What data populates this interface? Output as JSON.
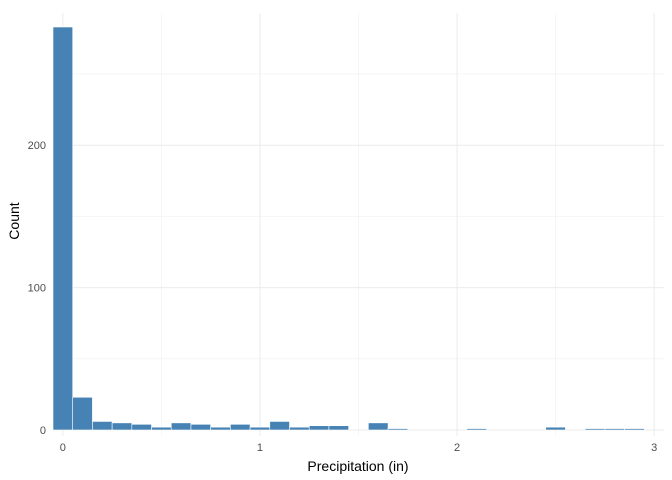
{
  "chart_data": {
    "type": "bar",
    "title": "",
    "xlabel": "Precipitation (in)",
    "ylabel": "Count",
    "bin_width": 0.1,
    "x": [
      0.0,
      0.1,
      0.2,
      0.3,
      0.4,
      0.5,
      0.6,
      0.7,
      0.8,
      0.9,
      1.0,
      1.1,
      1.2,
      1.3,
      1.4,
      1.5,
      1.6,
      1.7,
      1.8,
      1.9,
      2.0,
      2.1,
      2.2,
      2.3,
      2.4,
      2.5,
      2.6,
      2.7,
      2.8,
      2.9
    ],
    "values": [
      283,
      23,
      6,
      5,
      4,
      2,
      5,
      4,
      2,
      4,
      2,
      6,
      2,
      3,
      3,
      0,
      5,
      1,
      0,
      0,
      0,
      1,
      0,
      0,
      0,
      2,
      0,
      1,
      1,
      1
    ],
    "xlim": [
      -0.05,
      3.05
    ],
    "ylim": [
      0,
      283
    ],
    "x_ticks": [
      0,
      1,
      2,
      3
    ],
    "x_tick_labels": [
      "0",
      "1",
      "2",
      "3"
    ],
    "y_ticks": [
      0,
      100,
      200
    ],
    "y_tick_labels": [
      "0",
      "100",
      "200"
    ],
    "grid": true,
    "bar_color": "#4682B4",
    "grid_color": "#EBEBEB"
  }
}
